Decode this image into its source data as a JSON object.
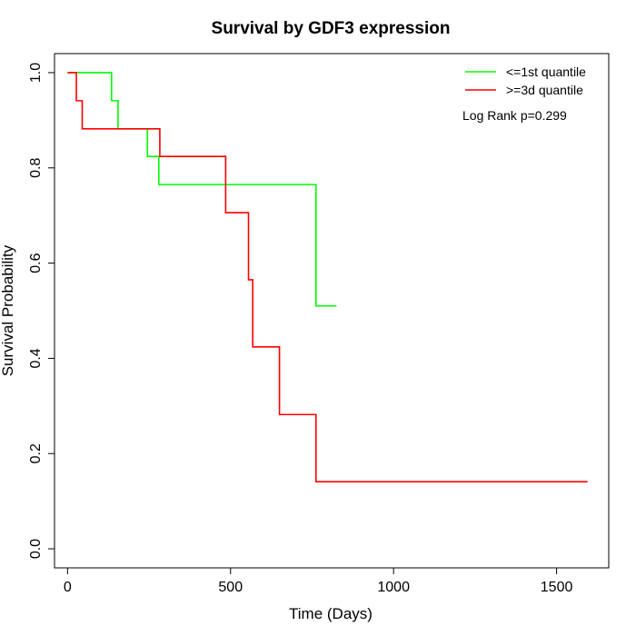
{
  "chart_data": {
    "type": "line",
    "title": "Survival by GDF3 expression",
    "xlabel": "Time (Days)",
    "ylabel": "Survival Probability",
    "xlim": [
      -40,
      1660
    ],
    "ylim": [
      -0.04,
      1.04
    ],
    "x_ticks": [
      0,
      500,
      1000,
      1500
    ],
    "x_tick_labels": [
      "0",
      "500",
      "1000",
      "1500"
    ],
    "y_ticks": [
      0.0,
      0.2,
      0.4,
      0.6,
      0.8,
      1.0
    ],
    "y_tick_labels": [
      "0.0",
      "0.2",
      "0.4",
      "0.6",
      "0.8",
      "1.0"
    ],
    "grid": false,
    "legend_position": "top-right",
    "annotation": "Log Rank p=0.299",
    "series": [
      {
        "name": "<=1st quantile",
        "color": "#00ff00",
        "step": true,
        "points": [
          [
            0,
            1.0
          ],
          [
            135,
            1.0
          ],
          [
            135,
            0.941
          ],
          [
            155,
            0.941
          ],
          [
            155,
            0.882
          ],
          [
            245,
            0.882
          ],
          [
            245,
            0.824
          ],
          [
            280,
            0.824
          ],
          [
            280,
            0.765
          ],
          [
            762,
            0.765
          ],
          [
            762,
            0.51
          ],
          [
            825,
            0.51
          ]
        ]
      },
      {
        "name": ">=3d quantile",
        "color": "#ff0000",
        "step": true,
        "points": [
          [
            0,
            1.0
          ],
          [
            27,
            1.0
          ],
          [
            27,
            0.941
          ],
          [
            45,
            0.941
          ],
          [
            45,
            0.882
          ],
          [
            283,
            0.882
          ],
          [
            283,
            0.824
          ],
          [
            485,
            0.824
          ],
          [
            485,
            0.706
          ],
          [
            555,
            0.706
          ],
          [
            555,
            0.565
          ],
          [
            568,
            0.565
          ],
          [
            568,
            0.424
          ],
          [
            650,
            0.424
          ],
          [
            650,
            0.282
          ],
          [
            762,
            0.282
          ],
          [
            762,
            0.141
          ],
          [
            1595,
            0.141
          ]
        ]
      }
    ]
  }
}
